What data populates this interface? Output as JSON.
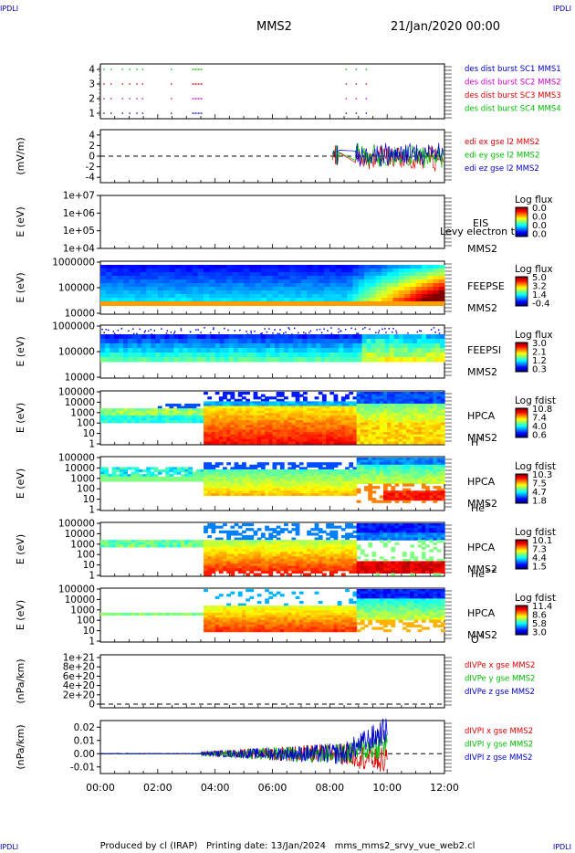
{
  "corner_left": "IPDLI",
  "corner_right": "IPDLI",
  "header": {
    "mission": "MMS2",
    "date": "21/Jan/2020 00:00"
  },
  "footer": {
    "produced_by": "Produced by cl (IRAP)",
    "printing_date": "Printing date: 13/Jan/2024",
    "file": "mms_mms2_srvy_vue_web2.cl"
  },
  "time_ticks": [
    "00:00",
    "02:00",
    "04:00",
    "06:00",
    "08:00",
    "10:00",
    "12:00"
  ],
  "colors": {
    "red": "#dd0000",
    "green": "#00bb00",
    "blue": "#0000cc",
    "magenta": "#cc00cc"
  },
  "chart_data": [
    {
      "id": "burst",
      "type": "scatter",
      "x_range_hours": [
        0,
        12
      ],
      "yticks": [
        "4",
        "3",
        "2",
        "1"
      ],
      "ylim": [
        0.5,
        4.5
      ],
      "legend": [
        {
          "label": "des dist burst SC1 MMS1",
          "color": "#0000cc"
        },
        {
          "label": "des dist burst SC2 MMS2",
          "color": "#cc00cc"
        },
        {
          "label": "des dist burst SC3 MMS3",
          "color": "#dd0000"
        },
        {
          "label": "des dist burst SC4 MMS4",
          "color": "#00bb00"
        }
      ],
      "series": [
        {
          "level": 4,
          "color": "#00bb00",
          "intervals": [
            [
              0.1,
              0.12
            ],
            [
              0.35,
              0.37
            ],
            [
              0.75,
              0.77
            ],
            [
              1.0,
              1.02
            ],
            [
              1.25,
              1.27
            ],
            [
              1.45,
              1.47
            ],
            [
              2.45,
              2.47
            ],
            [
              3.2,
              3.55
            ],
            [
              8.55,
              8.6
            ],
            [
              8.9,
              8.95
            ],
            [
              9.25,
              9.3
            ]
          ]
        },
        {
          "level": 3,
          "color": "#dd0000",
          "intervals": [
            [
              0.1,
              0.12
            ],
            [
              0.35,
              0.37
            ],
            [
              0.75,
              0.77
            ],
            [
              1.0,
              1.02
            ],
            [
              1.25,
              1.27
            ],
            [
              1.45,
              1.47
            ],
            [
              2.45,
              2.47
            ],
            [
              3.2,
              3.55
            ],
            [
              8.55,
              8.6
            ],
            [
              8.9,
              8.95
            ],
            [
              9.25,
              9.3
            ]
          ]
        },
        {
          "level": 2,
          "color": "#cc00cc",
          "intervals": [
            [
              0.1,
              0.12
            ],
            [
              0.35,
              0.37
            ],
            [
              0.75,
              0.77
            ],
            [
              1.0,
              1.02
            ],
            [
              1.25,
              1.27
            ],
            [
              1.45,
              1.47
            ],
            [
              2.45,
              2.47
            ],
            [
              3.2,
              3.55
            ],
            [
              8.55,
              8.6
            ],
            [
              8.9,
              8.95
            ],
            [
              9.25,
              9.3
            ]
          ]
        },
        {
          "level": 1,
          "color": "#0000cc",
          "intervals": [
            [
              0.1,
              0.12
            ],
            [
              0.35,
              0.37
            ],
            [
              0.75,
              0.77
            ],
            [
              1.0,
              1.02
            ],
            [
              1.25,
              1.27
            ],
            [
              1.45,
              1.47
            ],
            [
              2.45,
              2.47
            ],
            [
              3.2,
              3.55
            ],
            [
              8.55,
              8.6
            ],
            [
              8.9,
              8.95
            ],
            [
              9.25,
              9.3
            ]
          ]
        }
      ]
    },
    {
      "id": "efield",
      "type": "line",
      "ylabel": "(mV/m)",
      "yticks": [
        "4",
        "2",
        "0",
        "-2",
        "-4"
      ],
      "ylim": [
        -5,
        5
      ],
      "legend": [
        {
          "label": "edi ex gse l2 MMS2",
          "color": "#dd0000"
        },
        {
          "label": "edi ey gse l2 MMS2",
          "color": "#00bb00"
        },
        {
          "label": "edi ez gse l2 MMS2",
          "color": "#0000cc"
        }
      ],
      "activity_start_hours": 8.1,
      "activity_end_hours": 12
    },
    {
      "id": "eis",
      "type": "heatmap",
      "ylabel": "E (eV)",
      "yticks": [
        "1e+07",
        "1e+06",
        "1e+05",
        "1e+04"
      ],
      "instrument": "EIS",
      "spacecraft": "MMS2",
      "overlay_text": "Levy electron to",
      "colorbar": {
        "title": "Log flux",
        "ticks": [
          "0.0",
          "0.0",
          "0.0",
          "0.0"
        ]
      },
      "empty": true
    },
    {
      "id": "feepse",
      "type": "heatmap",
      "ylabel": "E (eV)",
      "yticks": [
        "1000000",
        "100000",
        "10000"
      ],
      "instrument": "FEEPSE",
      "spacecraft": "MMS2",
      "colorbar": {
        "title": "Log flux",
        "ticks": [
          "5.0",
          "3.2",
          "1.4",
          "-0.4"
        ]
      }
    },
    {
      "id": "feepsi",
      "type": "heatmap",
      "ylabel": "E (eV)",
      "yticks": [
        "1000000",
        "100000",
        "10000"
      ],
      "instrument": "FEEPSI",
      "spacecraft": "MMS2",
      "colorbar": {
        "title": "Log flux",
        "ticks": [
          "3.0",
          "2.1",
          "1.2",
          "0.3"
        ]
      }
    },
    {
      "id": "hpca_h",
      "type": "heatmap",
      "ylabel": "E (eV)",
      "yticks": [
        "100000",
        "10000",
        "1000",
        "100",
        "10",
        "1"
      ],
      "instrument": "HPCA",
      "spacecraft": "MMS2",
      "species": "H",
      "charge": "+",
      "colorbar": {
        "title": "Log fdist",
        "ticks": [
          "10.8",
          "7.4",
          "4.0",
          "0.6"
        ]
      }
    },
    {
      "id": "hpca_he1",
      "type": "heatmap",
      "ylabel": "E (eV)",
      "yticks": [
        "100000",
        "10000",
        "1000",
        "100",
        "10",
        "1"
      ],
      "instrument": "HPCA",
      "spacecraft": "MMS2",
      "species": "He",
      "charge": "+",
      "colorbar": {
        "title": "Log fdist",
        "ticks": [
          "10.3",
          "7.5",
          "4.7",
          "1.8"
        ]
      }
    },
    {
      "id": "hpca_he2",
      "type": "heatmap",
      "ylabel": "E (eV)",
      "yticks": [
        "100000",
        "10000",
        "1000",
        "100",
        "10",
        "1"
      ],
      "instrument": "HPCA",
      "spacecraft": "MMS2",
      "species": "He",
      "charge": "++",
      "colorbar": {
        "title": "Log fdist",
        "ticks": [
          "10.1",
          "7.3",
          "4.4",
          "1.5"
        ]
      }
    },
    {
      "id": "hpca_o",
      "type": "heatmap",
      "ylabel": "E (eV)",
      "yticks": [
        "100000",
        "10000",
        "1000",
        "100",
        "10",
        "1"
      ],
      "instrument": "HPCA",
      "spacecraft": "MMS2",
      "species": "O",
      "charge": "+",
      "colorbar": {
        "title": "Log fdist",
        "ticks": [
          "11.4",
          "8.6",
          "5.8",
          "3.0"
        ]
      }
    },
    {
      "id": "divpe",
      "type": "line",
      "ylabel": "(nPa/km)",
      "yticks": [
        "1e+21",
        "8e+20",
        "6e+20",
        "4e+20",
        "2e+20",
        "0"
      ],
      "legend": [
        {
          "label": "dIVPe x gse MMS2",
          "color": "#dd0000"
        },
        {
          "label": "dIVPe y gse MMS2",
          "color": "#00bb00"
        },
        {
          "label": "dIVPe z gse MMS2",
          "color": "#0000cc"
        }
      ],
      "values_all_zero": true
    },
    {
      "id": "divpi",
      "type": "line",
      "ylabel": "(nPa/km)",
      "yticks": [
        "0.02",
        "0.01",
        "0.00",
        "-0.01"
      ],
      "ylim": [
        -0.015,
        0.025
      ],
      "legend": [
        {
          "label": "dIVPI x gse MMS2",
          "color": "#dd0000"
        },
        {
          "label": "dIVPI y gse MMS2",
          "color": "#00bb00"
        },
        {
          "label": "dIVPI z gse MMS2",
          "color": "#0000cc"
        }
      ],
      "end_values": {
        "x": -0.006,
        "y": 0.007,
        "z": 0.018
      },
      "data_end_hours": 10
    }
  ]
}
